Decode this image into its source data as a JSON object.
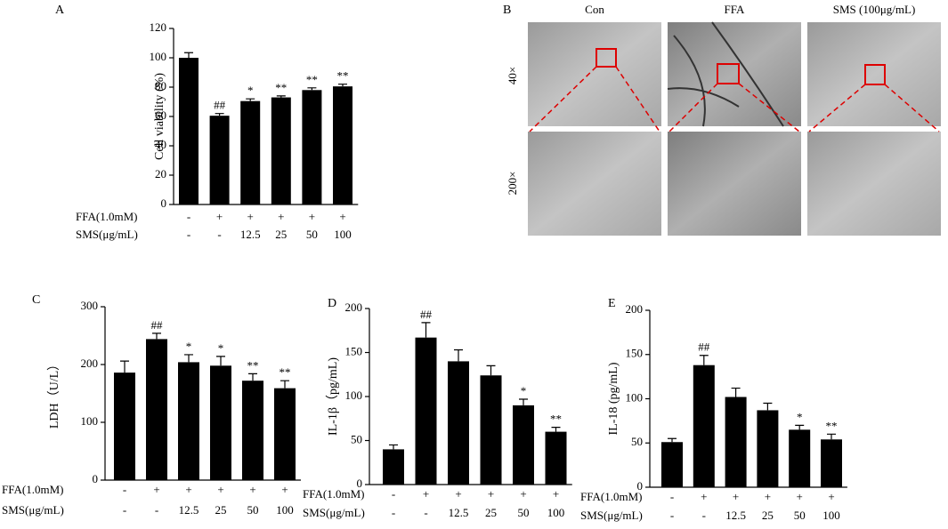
{
  "chart_data": [
    {
      "type": "bar",
      "panel": "A",
      "ylabel": "Cell viability (%)",
      "color": "#000000",
      "ylim": [
        0,
        120
      ],
      "yticks": [
        0,
        20,
        40,
        60,
        80,
        100,
        120
      ],
      "values": [
        100,
        60.5,
        70.5,
        73,
        78,
        80.5
      ],
      "errors": [
        3.5,
        1.5,
        1.5,
        1,
        1.5,
        1.5
      ],
      "annotations": [
        null,
        "##",
        "*",
        "**",
        "**",
        "**"
      ],
      "condition_rows": [
        {
          "name": "FFA(1.0mM)",
          "labels": [
            "-",
            "+",
            "+",
            "+",
            "+",
            "+"
          ]
        },
        {
          "name": "SMS(μg/mL)",
          "labels": [
            "-",
            "-",
            "12.5",
            "25",
            "50",
            "100"
          ]
        }
      ]
    },
    {
      "type": "bar",
      "panel": "C",
      "ylabel": "LDH（U/L）",
      "color": "#000000",
      "ylim": [
        0,
        300
      ],
      "yticks": [
        0,
        100,
        200,
        300
      ],
      "values": [
        186,
        244,
        204,
        198,
        172,
        159
      ],
      "errors": [
        20,
        10,
        13,
        16,
        12,
        13
      ],
      "annotations": [
        null,
        "##",
        "*",
        "*",
        "**",
        "**"
      ],
      "condition_rows": [
        {
          "name": "FFA(1.0mM)",
          "labels": [
            "-",
            "+",
            "+",
            "+",
            "+",
            "+"
          ]
        },
        {
          "name": "SMS(μg/mL)",
          "labels": [
            "-",
            "-",
            "12.5",
            "25",
            "50",
            "100"
          ]
        }
      ]
    },
    {
      "type": "bar",
      "panel": "D",
      "ylabel": "IL-1β（pg/mL)",
      "color": "#000000",
      "ylim": [
        0,
        200
      ],
      "yticks": [
        0,
        50,
        100,
        150,
        200
      ],
      "values": [
        40,
        167,
        140,
        124,
        90,
        60
      ],
      "errors": [
        5,
        17,
        13,
        11,
        7,
        5
      ],
      "annotations": [
        null,
        "##",
        null,
        null,
        "*",
        "**"
      ],
      "condition_rows": [
        {
          "name": "FFA(1.0mM)",
          "labels": [
            "-",
            "+",
            "+",
            "+",
            "+",
            "+"
          ]
        },
        {
          "name": "SMS(μg/mL)",
          "labels": [
            "-",
            "-",
            "12.5",
            "25",
            "50",
            "100"
          ]
        }
      ]
    },
    {
      "type": "bar",
      "panel": "E",
      "ylabel": "IL-18 (pg/mL)",
      "color": "#000000",
      "ylim": [
        0,
        200
      ],
      "yticks": [
        0,
        50,
        100,
        150,
        200
      ],
      "values": [
        51,
        138,
        102,
        87,
        65,
        54
      ],
      "errors": [
        4,
        11,
        10,
        8,
        5,
        6
      ],
      "annotations": [
        null,
        "##",
        null,
        null,
        "*",
        "**"
      ],
      "condition_rows": [
        {
          "name": "FFA(1.0mM)",
          "labels": [
            "-",
            "+",
            "+",
            "+",
            "+",
            "+"
          ]
        },
        {
          "name": "SMS(μg/mL)",
          "labels": [
            "-",
            "-",
            "12.5",
            "25",
            "50",
            "100"
          ]
        }
      ]
    }
  ],
  "image_panel": {
    "panel": "B",
    "columns": [
      "Con",
      "FFA",
      "SMS (100μg/mL)"
    ],
    "rows": [
      "40×",
      "200×"
    ]
  }
}
